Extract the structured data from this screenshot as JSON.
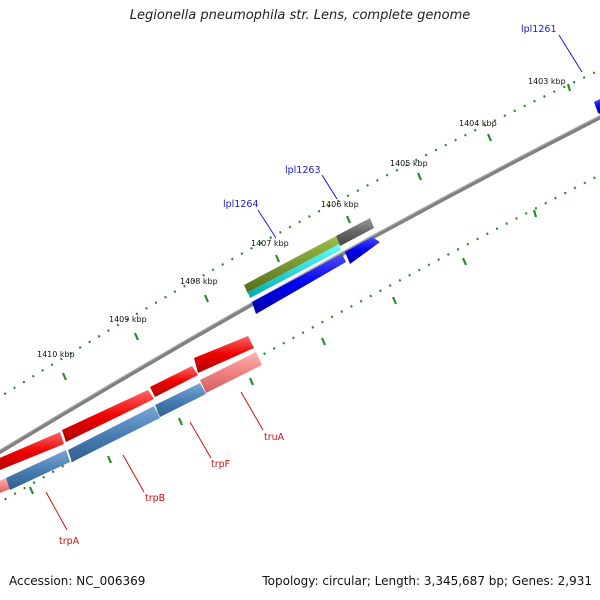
{
  "title": "Legionella pneumophila str. Lens, complete genome",
  "footer": {
    "accession": "Accession: NC_006369",
    "stats": "Topology: circular; Length: 3,345,687 bp; Genes: 2,931"
  },
  "colors": {
    "backbone": "#808080",
    "tick": "#2a8a2a",
    "gene_blue": "#0000ee",
    "gene_red": "#ee0000",
    "gene_pink": "#f08080",
    "gene_steel": "#4a7fb5",
    "gene_olive": "#6b8e23",
    "gene_cyan": "#00cccc",
    "gene_gray": "#666666"
  },
  "tick_labels": [
    "1403 kbp",
    "1404 kbp",
    "1405 kbp",
    "1406 kbp",
    "1407 kbp",
    "1408 kbp",
    "1409 kbp",
    "1410 kbp"
  ],
  "gene_labels": [
    {
      "text": "lpl1261",
      "color": "blue"
    },
    {
      "text": "lpl1263",
      "color": "blue"
    },
    {
      "text": "lpl1264",
      "color": "blue"
    },
    {
      "text": "truA",
      "color": "red"
    },
    {
      "text": "trpF",
      "color": "red"
    },
    {
      "text": "trpB",
      "color": "red"
    },
    {
      "text": "trpA",
      "color": "red"
    }
  ]
}
